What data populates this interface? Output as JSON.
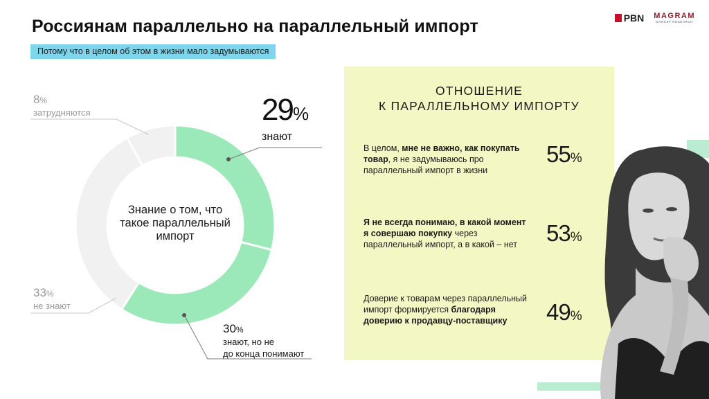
{
  "header": {
    "title": "Россиянам параллельно на параллельный импорт",
    "subtitle": "Потому что в целом об этом в жизни мало задумываются",
    "logo_pbn": "PBN",
    "logo_magram": "MAGRAM",
    "logo_magram_sub": "MARKET RESEARCH"
  },
  "chart_data": {
    "type": "pie",
    "categories": [
      "знают",
      "знают, но не до конца понимают",
      "не знают",
      "затрудняются"
    ],
    "values": [
      29,
      30,
      33,
      8
    ],
    "colors": [
      "#9be8b8",
      "#9be8b8",
      "#f1f1f1",
      "#f1f1f1"
    ],
    "center_label": "Знание о том, что такое параллельный импорт",
    "unit": "%",
    "labels": {
      "knows": {
        "value": "29",
        "unit": "%",
        "text": "знают"
      },
      "partly": {
        "value": "30",
        "unit": "%",
        "line1": "знают, но не",
        "line2": "до конца понимают"
      },
      "dont_know": {
        "value": "33",
        "unit": "%",
        "text": "не знают"
      },
      "unsure": {
        "value": "8",
        "unit": "%",
        "text": "затрудняются"
      }
    }
  },
  "panel": {
    "title_line1": "ОТНОШЕНИЕ",
    "title_line2": "К ПАРАЛЛЕЛЬНОМУ ИМПОРТУ",
    "unit": "%",
    "items": [
      {
        "parts": [
          {
            "t": "В целом, ",
            "b": false
          },
          {
            "t": "мне не важно, как покупать товар",
            "b": true
          },
          {
            "t": ", я не задумываюсь про параллельный импорт в жизни",
            "b": false
          }
        ],
        "value": "55"
      },
      {
        "parts": [
          {
            "t": "Я не всегда понимаю, в какой момент я совершаю покупку",
            "b": true
          },
          {
            "t": " через параллельный импорт, а в какой – нет",
            "b": false
          }
        ],
        "value": "53"
      },
      {
        "parts": [
          {
            "t": "Доверие к товарам через параллельный импорт формируется ",
            "b": false
          },
          {
            "t": "благодаря доверию к продавцу-поставщику",
            "b": true
          }
        ],
        "value": "49"
      }
    ]
  }
}
